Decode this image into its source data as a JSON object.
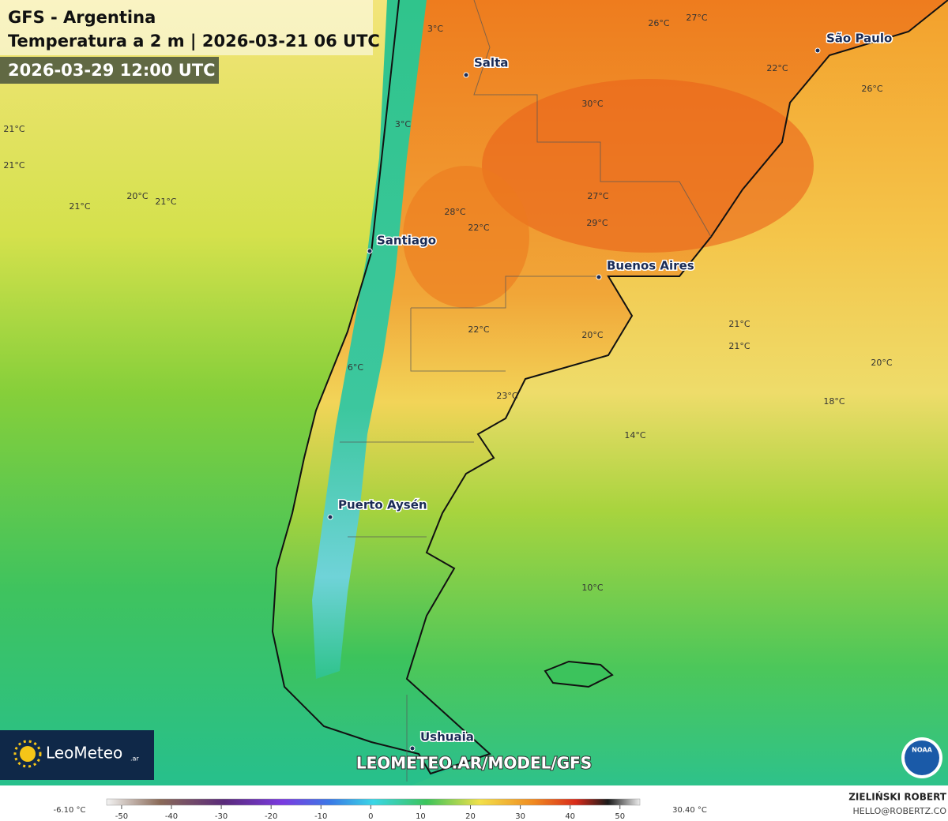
{
  "header": {
    "title": "GFS - Argentina",
    "subtitle": "Temperatura a 2 m | 2026-03-21 06 UTC",
    "valid_time": "2026-03-29 12:00 UTC"
  },
  "cities": [
    "Salta",
    "São Paulo",
    "Santiago",
    "Buenos Aires",
    "Puerto Aysén",
    "Ushuaia"
  ],
  "temperature_labels": [
    "3°C",
    "26°C",
    "27°C",
    "22°C",
    "26°C",
    "3°C",
    "30°C",
    "21°C",
    "21°C",
    "20°C",
    "21°C",
    "21°C",
    "27°C",
    "28°C",
    "22°C",
    "29°C",
    "22°C",
    "20°C",
    "21°C",
    "21°C",
    "20°C",
    "6°C",
    "23°C",
    "18°C",
    "14°C",
    "10°C"
  ],
  "branding": {
    "logo": "LeoMeteo",
    "logo_suffix": ".ar",
    "url": "LEOMETEO.AR/MODEL/GFS",
    "noaa": "NOAA",
    "author": "ZIELIŃSKI ROBERT",
    "email": "HELLO@ROBERTZ.CO"
  },
  "colorbar": {
    "min_label": "-6.10 °C",
    "max_label": "30.40 °C",
    "lim": [
      -53,
      54
    ],
    "ticks": [
      -50,
      -40,
      -30,
      -20,
      -10,
      0,
      10,
      20,
      30,
      40,
      50
    ]
  }
}
